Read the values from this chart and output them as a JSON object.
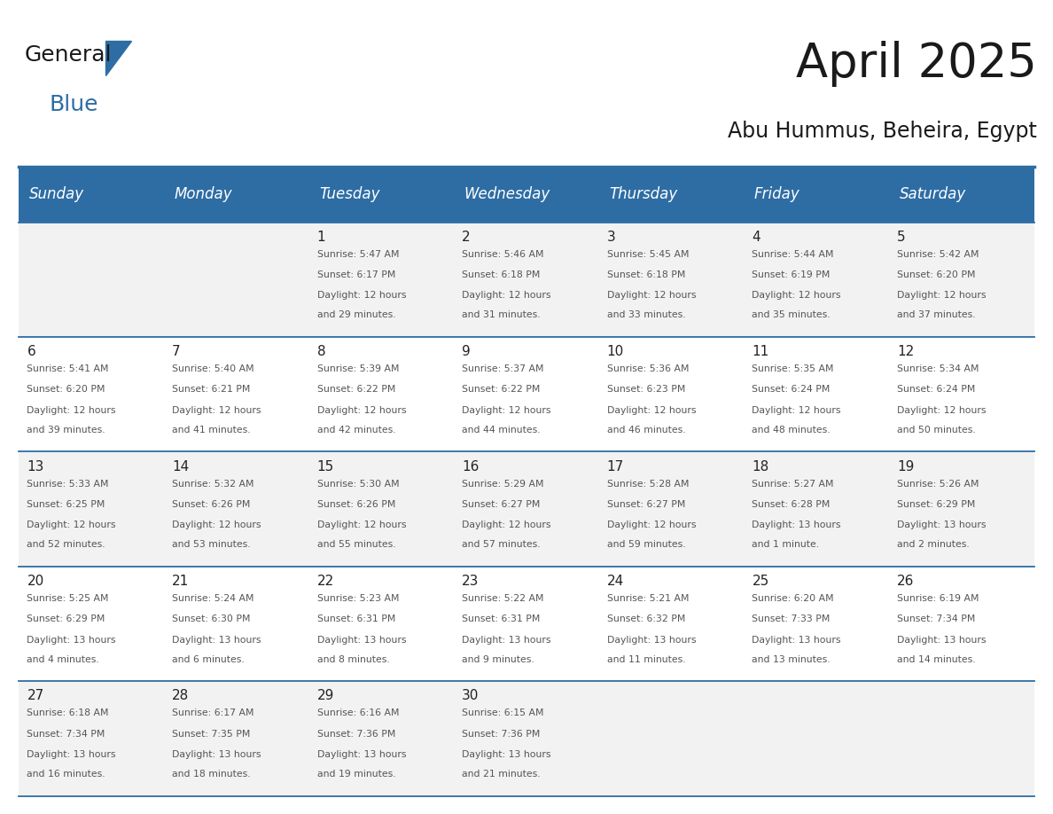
{
  "title": "April 2025",
  "subtitle": "Abu Hummus, Beheira, Egypt",
  "header_bg": "#2E6DA4",
  "header_text": "#FFFFFF",
  "row_bg_odd": "#F2F2F2",
  "row_bg_even": "#FFFFFF",
  "grid_line_color": "#2E6DA4",
  "day_headers": [
    "Sunday",
    "Monday",
    "Tuesday",
    "Wednesday",
    "Thursday",
    "Friday",
    "Saturday"
  ],
  "days": [
    {
      "day": 1,
      "col": 2,
      "row": 0,
      "sunrise": "5:47 AM",
      "sunset": "6:17 PM",
      "daylight": "12 hours and 29 minutes."
    },
    {
      "day": 2,
      "col": 3,
      "row": 0,
      "sunrise": "5:46 AM",
      "sunset": "6:18 PM",
      "daylight": "12 hours and 31 minutes."
    },
    {
      "day": 3,
      "col": 4,
      "row": 0,
      "sunrise": "5:45 AM",
      "sunset": "6:18 PM",
      "daylight": "12 hours and 33 minutes."
    },
    {
      "day": 4,
      "col": 5,
      "row": 0,
      "sunrise": "5:44 AM",
      "sunset": "6:19 PM",
      "daylight": "12 hours and 35 minutes."
    },
    {
      "day": 5,
      "col": 6,
      "row": 0,
      "sunrise": "5:42 AM",
      "sunset": "6:20 PM",
      "daylight": "12 hours and 37 minutes."
    },
    {
      "day": 6,
      "col": 0,
      "row": 1,
      "sunrise": "5:41 AM",
      "sunset": "6:20 PM",
      "daylight": "12 hours and 39 minutes."
    },
    {
      "day": 7,
      "col": 1,
      "row": 1,
      "sunrise": "5:40 AM",
      "sunset": "6:21 PM",
      "daylight": "12 hours and 41 minutes."
    },
    {
      "day": 8,
      "col": 2,
      "row": 1,
      "sunrise": "5:39 AM",
      "sunset": "6:22 PM",
      "daylight": "12 hours and 42 minutes."
    },
    {
      "day": 9,
      "col": 3,
      "row": 1,
      "sunrise": "5:37 AM",
      "sunset": "6:22 PM",
      "daylight": "12 hours and 44 minutes."
    },
    {
      "day": 10,
      "col": 4,
      "row": 1,
      "sunrise": "5:36 AM",
      "sunset": "6:23 PM",
      "daylight": "12 hours and 46 minutes."
    },
    {
      "day": 11,
      "col": 5,
      "row": 1,
      "sunrise": "5:35 AM",
      "sunset": "6:24 PM",
      "daylight": "12 hours and 48 minutes."
    },
    {
      "day": 12,
      "col": 6,
      "row": 1,
      "sunrise": "5:34 AM",
      "sunset": "6:24 PM",
      "daylight": "12 hours and 50 minutes."
    },
    {
      "day": 13,
      "col": 0,
      "row": 2,
      "sunrise": "5:33 AM",
      "sunset": "6:25 PM",
      "daylight": "12 hours and 52 minutes."
    },
    {
      "day": 14,
      "col": 1,
      "row": 2,
      "sunrise": "5:32 AM",
      "sunset": "6:26 PM",
      "daylight": "12 hours and 53 minutes."
    },
    {
      "day": 15,
      "col": 2,
      "row": 2,
      "sunrise": "5:30 AM",
      "sunset": "6:26 PM",
      "daylight": "12 hours and 55 minutes."
    },
    {
      "day": 16,
      "col": 3,
      "row": 2,
      "sunrise": "5:29 AM",
      "sunset": "6:27 PM",
      "daylight": "12 hours and 57 minutes."
    },
    {
      "day": 17,
      "col": 4,
      "row": 2,
      "sunrise": "5:28 AM",
      "sunset": "6:27 PM",
      "daylight": "12 hours and 59 minutes."
    },
    {
      "day": 18,
      "col": 5,
      "row": 2,
      "sunrise": "5:27 AM",
      "sunset": "6:28 PM",
      "daylight": "13 hours and 1 minute."
    },
    {
      "day": 19,
      "col": 6,
      "row": 2,
      "sunrise": "5:26 AM",
      "sunset": "6:29 PM",
      "daylight": "13 hours and 2 minutes."
    },
    {
      "day": 20,
      "col": 0,
      "row": 3,
      "sunrise": "5:25 AM",
      "sunset": "6:29 PM",
      "daylight": "13 hours and 4 minutes."
    },
    {
      "day": 21,
      "col": 1,
      "row": 3,
      "sunrise": "5:24 AM",
      "sunset": "6:30 PM",
      "daylight": "13 hours and 6 minutes."
    },
    {
      "day": 22,
      "col": 2,
      "row": 3,
      "sunrise": "5:23 AM",
      "sunset": "6:31 PM",
      "daylight": "13 hours and 8 minutes."
    },
    {
      "day": 23,
      "col": 3,
      "row": 3,
      "sunrise": "5:22 AM",
      "sunset": "6:31 PM",
      "daylight": "13 hours and 9 minutes."
    },
    {
      "day": 24,
      "col": 4,
      "row": 3,
      "sunrise": "5:21 AM",
      "sunset": "6:32 PM",
      "daylight": "13 hours and 11 minutes."
    },
    {
      "day": 25,
      "col": 5,
      "row": 3,
      "sunrise": "6:20 AM",
      "sunset": "7:33 PM",
      "daylight": "13 hours and 13 minutes."
    },
    {
      "day": 26,
      "col": 6,
      "row": 3,
      "sunrise": "6:19 AM",
      "sunset": "7:34 PM",
      "daylight": "13 hours and 14 minutes."
    },
    {
      "day": 27,
      "col": 0,
      "row": 4,
      "sunrise": "6:18 AM",
      "sunset": "7:34 PM",
      "daylight": "13 hours and 16 minutes."
    },
    {
      "day": 28,
      "col": 1,
      "row": 4,
      "sunrise": "6:17 AM",
      "sunset": "7:35 PM",
      "daylight": "13 hours and 18 minutes."
    },
    {
      "day": 29,
      "col": 2,
      "row": 4,
      "sunrise": "6:16 AM",
      "sunset": "7:36 PM",
      "daylight": "13 hours and 19 minutes."
    },
    {
      "day": 30,
      "col": 3,
      "row": 4,
      "sunrise": "6:15 AM",
      "sunset": "7:36 PM",
      "daylight": "13 hours and 21 minutes."
    }
  ],
  "n_rows": 5,
  "n_cols": 7,
  "cell_text_color": "#555555",
  "day_number_color": "#222222",
  "logo_general_color": "#1a1a1a",
  "logo_blue_color": "#2E6DA4",
  "title_fontsize": 38,
  "subtitle_fontsize": 17,
  "header_fontsize": 12,
  "day_num_fontsize": 11,
  "cell_text_fontsize": 7.8
}
